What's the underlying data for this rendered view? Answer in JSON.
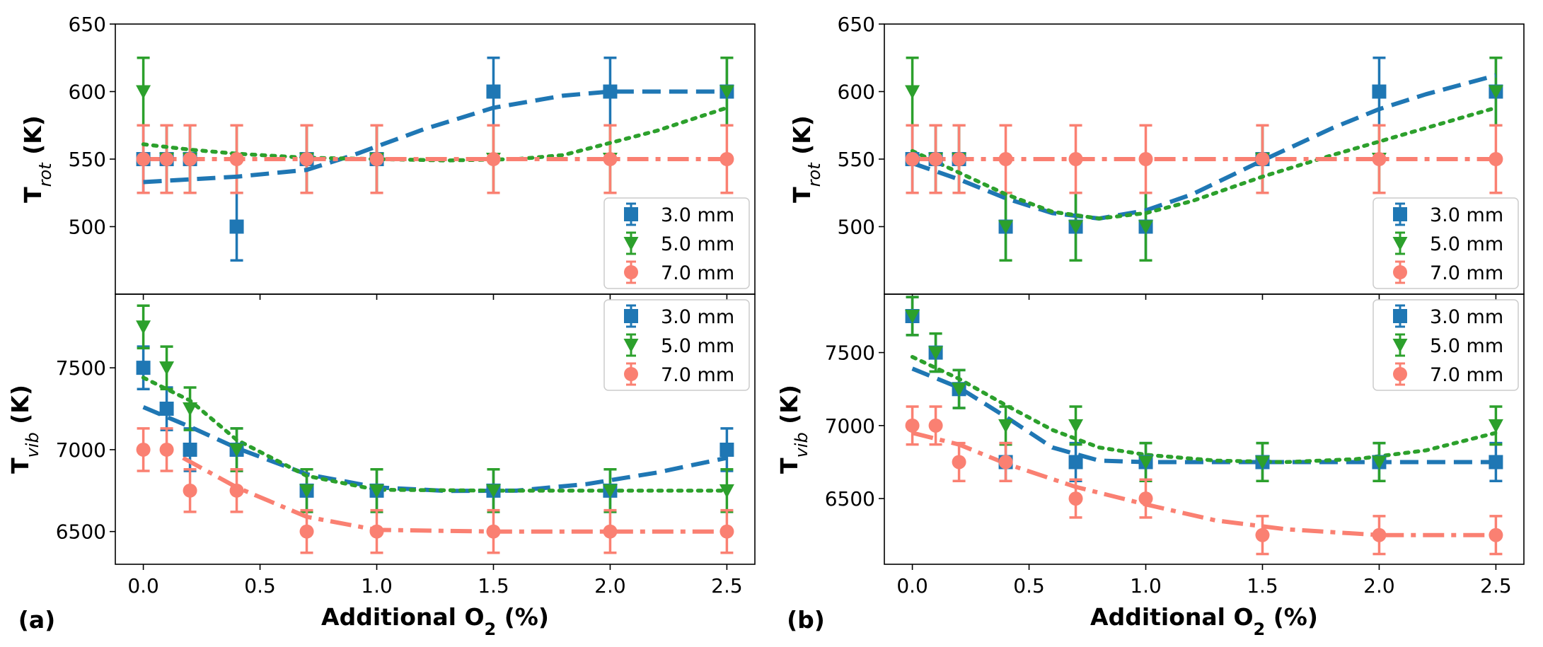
{
  "figure": {
    "panel_labels": [
      "(a)",
      "(b)"
    ],
    "colors": {
      "3.0 mm": "#1f77b4",
      "5.0 mm": "#2ca02c",
      "7.0 mm": "#fa8072"
    }
  },
  "chart_data": [
    {
      "id": "a_rot",
      "type": "scatter",
      "panel": "(a)",
      "ylabel": "T",
      "ylabel_sub": "rot",
      "ylabel_unit": " (K)",
      "xlabel": "",
      "xlim": [
        -0.12,
        2.62
      ],
      "ylim": [
        450,
        650
      ],
      "xticks": [],
      "yticks": [
        500,
        550,
        600,
        650
      ],
      "legend": {
        "loc": "lower-right",
        "entries": [
          "3.0 mm",
          "5.0 mm",
          "7.0 mm"
        ]
      },
      "series": [
        {
          "name": "3.0 mm",
          "marker": "square",
          "line": "dashed",
          "color": "#1f77b4",
          "x": [
            0,
            0.1,
            0.2,
            0.4,
            0.7,
            1.0,
            1.5,
            2.0,
            2.5
          ],
          "y": [
            550,
            550,
            550,
            500,
            550,
            550,
            600,
            600,
            600
          ],
          "err": 25,
          "fit": [
            [
              0,
              533
            ],
            [
              0.2,
              535
            ],
            [
              0.4,
              537
            ],
            [
              0.7,
              542
            ],
            [
              0.9,
              553
            ],
            [
              1.2,
              572
            ],
            [
              1.5,
              588
            ],
            [
              1.8,
              597
            ],
            [
              2.0,
              600
            ],
            [
              2.5,
              600
            ]
          ]
        },
        {
          "name": "5.0 mm",
          "marker": "triangle-down",
          "line": "dotted",
          "color": "#2ca02c",
          "x": [
            0,
            0.1,
            0.2,
            0.4,
            0.7,
            1.0,
            1.5,
            2.0,
            2.5
          ],
          "y": [
            600,
            550,
            550,
            550,
            550,
            550,
            550,
            550,
            600
          ],
          "err": 25,
          "fit": [
            [
              0,
              561
            ],
            [
              0.2,
              557
            ],
            [
              0.4,
              554
            ],
            [
              0.7,
              551
            ],
            [
              1.0,
              550
            ],
            [
              1.3,
              549
            ],
            [
              1.6,
              550
            ],
            [
              1.8,
              553
            ],
            [
              2.0,
              562
            ],
            [
              2.2,
              571
            ],
            [
              2.5,
              588
            ]
          ]
        },
        {
          "name": "7.0 mm",
          "marker": "circle",
          "line": "dashdot",
          "color": "#fa8072",
          "x": [
            0,
            0.1,
            0.2,
            0.4,
            0.7,
            1.0,
            1.5,
            2.0,
            2.5
          ],
          "y": [
            550,
            550,
            550,
            550,
            550,
            550,
            550,
            550,
            550
          ],
          "err": 25,
          "fit": [
            [
              0,
              550
            ],
            [
              2.5,
              550
            ]
          ]
        }
      ]
    },
    {
      "id": "a_vib",
      "type": "scatter",
      "panel": "(a)",
      "ylabel": "T",
      "ylabel_sub": "vib",
      "ylabel_unit": " (K)",
      "xlabel": "Additional O",
      "xlabel_sub": "2",
      "xlabel_unit": " (%)",
      "xlim": [
        -0.12,
        2.62
      ],
      "ylim": [
        6300,
        7950
      ],
      "xticks": [
        0.0,
        0.5,
        1.0,
        1.5,
        2.0,
        2.5
      ],
      "xtick_labels": [
        "0.0",
        "0.5",
        "1.0",
        "1.5",
        "2.0",
        "2.5"
      ],
      "yticks": [
        6500,
        7000,
        7500
      ],
      "legend": {
        "loc": "upper-right",
        "entries": [
          "3.0 mm",
          "5.0 mm",
          "7.0 mm"
        ]
      },
      "series": [
        {
          "name": "3.0 mm",
          "marker": "square",
          "line": "dashed",
          "color": "#1f77b4",
          "x": [
            0,
            0.1,
            0.2,
            0.4,
            0.7,
            1.0,
            1.5,
            2.0,
            2.5
          ],
          "y": [
            7500,
            7250,
            7000,
            7000,
            6750,
            6750,
            6750,
            6750,
            7000
          ],
          "err": 130,
          "fit": [
            [
              0,
              7260
            ],
            [
              0.2,
              7140
            ],
            [
              0.4,
              7010
            ],
            [
              0.7,
              6850
            ],
            [
              1.0,
              6770
            ],
            [
              1.3,
              6748
            ],
            [
              1.6,
              6750
            ],
            [
              1.9,
              6790
            ],
            [
              2.2,
              6860
            ],
            [
              2.5,
              6950
            ]
          ]
        },
        {
          "name": "5.0 mm",
          "marker": "triangle-down",
          "line": "dotted",
          "color": "#2ca02c",
          "x": [
            0,
            0.1,
            0.2,
            0.4,
            0.7,
            1.0,
            1.5,
            2.0,
            2.5
          ],
          "y": [
            7750,
            7500,
            7250,
            7000,
            6750,
            6750,
            6750,
            6750,
            6750
          ],
          "err": 130,
          "fit": [
            [
              0,
              7440
            ],
            [
              0.2,
              7300
            ],
            [
              0.4,
              7060
            ],
            [
              0.7,
              6840
            ],
            [
              1.0,
              6755
            ],
            [
              1.5,
              6750
            ],
            [
              2.0,
              6750
            ],
            [
              2.5,
              6750
            ]
          ]
        },
        {
          "name": "7.0 mm",
          "marker": "circle",
          "line": "dashdot",
          "color": "#fa8072",
          "x": [
            0,
            0.1,
            0.2,
            0.4,
            0.7,
            1.0,
            1.5,
            2.0,
            2.5
          ],
          "y": [
            7000,
            7000,
            6750,
            6750,
            6500,
            6500,
            6500,
            6500,
            6500
          ],
          "err": 130,
          "fit": [
            [
              0.17,
              6950
            ],
            [
              0.4,
              6770
            ],
            [
              0.7,
              6590
            ],
            [
              1.0,
              6510
            ],
            [
              1.5,
              6500
            ],
            [
              2.0,
              6500
            ],
            [
              2.5,
              6500
            ]
          ]
        }
      ]
    },
    {
      "id": "b_rot",
      "type": "scatter",
      "panel": "(b)",
      "ylabel": "T",
      "ylabel_sub": "rot",
      "ylabel_unit": " (K)",
      "xlabel": "",
      "xlim": [
        -0.12,
        2.62
      ],
      "ylim": [
        450,
        650
      ],
      "xticks": [],
      "yticks": [
        500,
        550,
        600,
        650
      ],
      "legend": {
        "loc": "lower-right",
        "entries": [
          "3.0 mm",
          "5.0 mm",
          "7.0 mm"
        ]
      },
      "series": [
        {
          "name": "3.0 mm",
          "marker": "square",
          "line": "dashed",
          "color": "#1f77b4",
          "x": [
            0,
            0.1,
            0.2,
            0.4,
            0.7,
            1.0,
            1.5,
            2.0,
            2.5
          ],
          "y": [
            550,
            550,
            550,
            500,
            500,
            500,
            550,
            600,
            600
          ],
          "err": 25,
          "fit": [
            [
              0,
              547
            ],
            [
              0.2,
              535
            ],
            [
              0.4,
              521
            ],
            [
              0.6,
              510
            ],
            [
              0.8,
              506
            ],
            [
              1.0,
              512
            ],
            [
              1.2,
              524
            ],
            [
              1.5,
              549
            ],
            [
              1.8,
              573
            ],
            [
              2.0,
              587
            ],
            [
              2.2,
              598
            ],
            [
              2.5,
              612
            ]
          ]
        },
        {
          "name": "5.0 mm",
          "marker": "triangle-down",
          "line": "dotted",
          "color": "#2ca02c",
          "x": [
            0,
            0.1,
            0.2,
            0.4,
            0.7,
            1.0,
            1.5,
            2.0,
            2.5
          ],
          "y": [
            600,
            550,
            550,
            500,
            500,
            500,
            550,
            550,
            600
          ],
          "err": 25,
          "fit": [
            [
              0,
              556
            ],
            [
              0.2,
              540
            ],
            [
              0.4,
              524
            ],
            [
              0.6,
              511
            ],
            [
              0.8,
              506
            ],
            [
              1.0,
              510
            ],
            [
              1.2,
              519
            ],
            [
              1.5,
              537
            ],
            [
              1.8,
              553
            ],
            [
              2.0,
              563
            ],
            [
              2.2,
              573
            ],
            [
              2.5,
              588
            ]
          ]
        },
        {
          "name": "7.0 mm",
          "marker": "circle",
          "line": "dashdot",
          "color": "#fa8072",
          "x": [
            0,
            0.1,
            0.2,
            0.4,
            0.7,
            1.0,
            1.5,
            2.0,
            2.5
          ],
          "y": [
            550,
            550,
            550,
            550,
            550,
            550,
            550,
            550,
            550
          ],
          "err": 25,
          "fit": [
            [
              0,
              550
            ],
            [
              2.5,
              550
            ]
          ]
        }
      ]
    },
    {
      "id": "b_vib",
      "type": "scatter",
      "panel": "(b)",
      "ylabel": "T",
      "ylabel_sub": "vib",
      "ylabel_unit": " (K)",
      "xlabel": "Additional O",
      "xlabel_sub": "2",
      "xlabel_unit": " (%)",
      "xlim": [
        -0.12,
        2.62
      ],
      "ylim": [
        6050,
        7900
      ],
      "xticks": [
        0.0,
        0.5,
        1.0,
        1.5,
        2.0,
        2.5
      ],
      "xtick_labels": [
        "0.0",
        "0.5",
        "1.0",
        "1.5",
        "2.0",
        "2.5"
      ],
      "yticks": [
        6500,
        7000,
        7500
      ],
      "legend": {
        "loc": "upper-right",
        "entries": [
          "3.0 mm",
          "5.0 mm",
          "7.0 mm"
        ]
      },
      "series": [
        {
          "name": "3.0 mm",
          "marker": "square",
          "line": "dashed",
          "color": "#1f77b4",
          "x": [
            0,
            0.1,
            0.2,
            0.4,
            0.7,
            1.0,
            1.5,
            2.0,
            2.5
          ],
          "y": [
            7750,
            7500,
            7250,
            6750,
            6750,
            6750,
            6750,
            6750,
            6750
          ],
          "err": 130,
          "fit": [
            [
              0,
              7390
            ],
            [
              0.2,
              7260
            ],
            [
              0.4,
              7060
            ],
            [
              0.6,
              6850
            ],
            [
              0.8,
              6760
            ],
            [
              1.0,
              6750
            ],
            [
              1.5,
              6750
            ],
            [
              2.0,
              6750
            ],
            [
              2.5,
              6750
            ]
          ]
        },
        {
          "name": "5.0 mm",
          "marker": "triangle-down",
          "line": "dotted",
          "color": "#2ca02c",
          "x": [
            0,
            0.1,
            0.2,
            0.4,
            0.7,
            1.0,
            1.5,
            2.0,
            2.5
          ],
          "y": [
            7750,
            7500,
            7250,
            7000,
            7000,
            6750,
            6750,
            6750,
            7000
          ],
          "err": 130,
          "fit": [
            [
              0,
              7470
            ],
            [
              0.2,
              7320
            ],
            [
              0.4,
              7140
            ],
            [
              0.6,
              6970
            ],
            [
              0.8,
              6850
            ],
            [
              1.0,
              6800
            ],
            [
              1.3,
              6760
            ],
            [
              1.6,
              6750
            ],
            [
              1.9,
              6770
            ],
            [
              2.2,
              6830
            ],
            [
              2.5,
              6950
            ]
          ]
        },
        {
          "name": "7.0 mm",
          "marker": "circle",
          "line": "dashdot",
          "color": "#fa8072",
          "x": [
            0,
            0.1,
            0.2,
            0.4,
            0.7,
            1.0,
            1.5,
            2.0,
            2.5
          ],
          "y": [
            7000,
            7000,
            6750,
            6750,
            6500,
            6500,
            6250,
            6250,
            6250
          ],
          "err": 130,
          "fit": [
            [
              0,
              6950
            ],
            [
              0.2,
              6870
            ],
            [
              0.4,
              6740
            ],
            [
              0.7,
              6580
            ],
            [
              1.0,
              6460
            ],
            [
              1.3,
              6350
            ],
            [
              1.6,
              6290
            ],
            [
              2.0,
              6250
            ],
            [
              2.5,
              6250
            ]
          ]
        }
      ]
    }
  ]
}
